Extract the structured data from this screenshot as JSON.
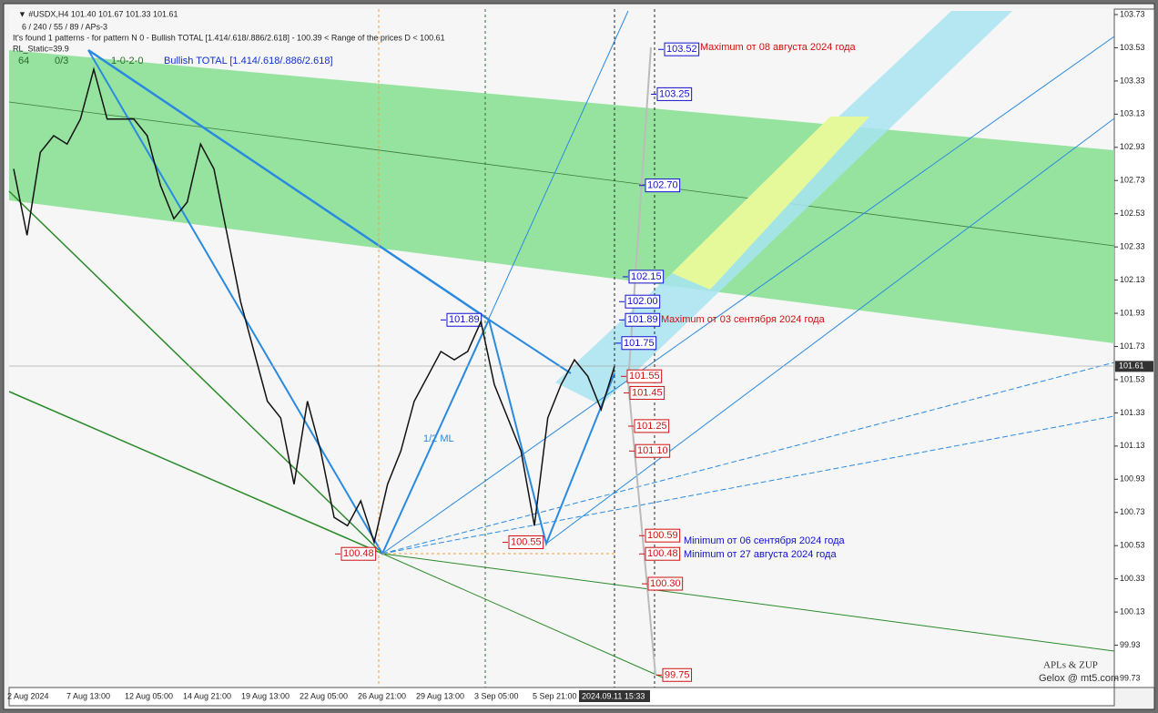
{
  "header": {
    "symbol_line": "▼ #USDX,H4  101.40 101.67 101.33 101.61",
    "settings_line": "6 / 240 / 55 / 89 / APs-3",
    "pattern_line": "It's found 1 patterns  -  for pattern N 0 - Bullish TOTAL [1.414/.618/.886/2.618] - 100.39 < Range of the prices D < 100.61",
    "rl_static": "RL_Static=39.9",
    "counter_a": "64",
    "counter_b": "0/3",
    "counter_c": "1-0-2-0",
    "pattern_name": "Bullish TOTAL [1.414/.618/.886/2.618]"
  },
  "price_axis": {
    "ylim": [
      99.73,
      103.73
    ],
    "ticks": [
      103.73,
      103.53,
      103.33,
      103.13,
      102.93,
      102.73,
      102.53,
      102.33,
      102.13,
      101.93,
      101.73,
      101.53,
      101.33,
      101.13,
      100.93,
      100.73,
      100.53,
      100.33,
      100.13,
      99.93,
      99.73
    ],
    "current": 101.61
  },
  "time_axis": {
    "labels": [
      "2 Aug 2024",
      "7 Aug 13:00",
      "12 Aug 05:00",
      "14 Aug 21:00",
      "19 Aug 13:00",
      "22 Aug 05:00",
      "26 Aug 21:00",
      "29 Aug 13:00",
      "3 Sep 05:00",
      "5 Sep 21:00"
    ],
    "current": "2024.09.11 15:33"
  },
  "levels": [
    {
      "value": 103.52,
      "label": "103.52",
      "color": "#1010d0"
    },
    {
      "value": 103.25,
      "label": "103.25",
      "color": "#1010d0"
    },
    {
      "value": 102.7,
      "label": "102.70",
      "color": "#1010d0"
    },
    {
      "value": 102.15,
      "label": "102.15",
      "color": "#1010d0"
    },
    {
      "value": 102,
      "label": "102.00",
      "color": "#1010d0"
    },
    {
      "value": 101.89,
      "label": "101.89",
      "color": "#1010d0"
    },
    {
      "value": 101.75,
      "label": "101.75",
      "color": "#1010d0"
    },
    {
      "value": 101.55,
      "label": "101.55",
      "color": "#d01010"
    },
    {
      "value": 101.45,
      "label": "101.45",
      "color": "#d01010"
    },
    {
      "value": 101.25,
      "label": "101.25",
      "color": "#d01010"
    },
    {
      "value": 101.1,
      "label": "101.10",
      "color": "#d01010"
    },
    {
      "value": 100.59,
      "label": "100.59",
      "color": "#d01010"
    },
    {
      "value": 100.48,
      "label": "100.48",
      "color": "#d01010"
    },
    {
      "value": 100.3,
      "label": "100.30",
      "color": "#d01010"
    },
    {
      "value": 99.75,
      "label": "99.75",
      "color": "#d01010"
    }
  ],
  "pattern_points": [
    {
      "value": 101.89,
      "label": "101.89",
      "color": "#1010d0"
    },
    {
      "value": 100.48,
      "label": "100.48",
      "color": "#d01010"
    },
    {
      "value": 100.55,
      "label": "100.55",
      "color": "#d01010"
    }
  ],
  "annotations": {
    "max_aug": "Maximum от 08 августа 2024 года",
    "max_sep": "Maximum от 03 сентября 2024 года",
    "min_sep": "Minimum от 06 сентября 2024 года",
    "min_aug": "Minimum от 27 августа 2024 года",
    "median": "1/2 ML"
  },
  "price_path": {
    "values": [
      102.8,
      102.4,
      102.9,
      103.0,
      102.95,
      103.1,
      103.4,
      103.1,
      103.1,
      103.1,
      103.0,
      102.7,
      102.5,
      102.6,
      102.95,
      102.8,
      102.4,
      102.0,
      101.7,
      101.4,
      101.3,
      100.9,
      101.4,
      101.1,
      100.7,
      100.65,
      100.8,
      100.55,
      100.9,
      101.1,
      101.4,
      101.55,
      101.7,
      101.65,
      101.7,
      101.88,
      101.5,
      101.3,
      101.1,
      100.65,
      101.3,
      101.5,
      101.65,
      101.55,
      101.35,
      101.61
    ]
  },
  "watermark": {
    "title": "APLs & ZUP",
    "site": "Gelox @ mt5.com"
  }
}
